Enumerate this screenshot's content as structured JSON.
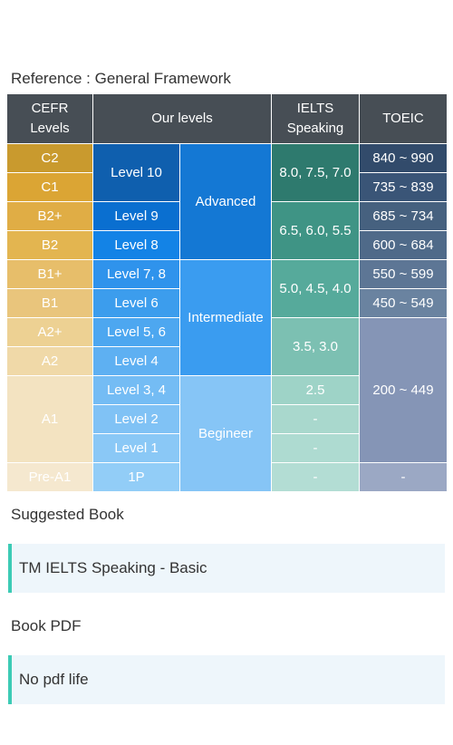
{
  "title": "Reference : General Framework",
  "table": {
    "header": [
      "CEFR Levels",
      "Our levels",
      "IELTS Speaking",
      "TOEIC"
    ],
    "rows": [
      [
        "C2",
        "Level 10",
        "Advanced",
        "8.0, 7.5, 7.0",
        "840 ~ 990"
      ],
      [
        "C1",
        "735 ~ 839"
      ],
      [
        "B2+",
        "Level 9",
        "6.5, 6.0, 5.5",
        "685 ~ 734"
      ],
      [
        "B2",
        "Level 8",
        "600 ~ 684"
      ],
      [
        "B1+",
        "Level 7, 8",
        "Intermediate",
        "5.0, 4.5, 4.0",
        "550 ~ 599"
      ],
      [
        "B1",
        "Level 6",
        "450 ~ 549"
      ],
      [
        "A2+",
        "Level 5, 6",
        "3.5, 3.0",
        "200 ~ 449"
      ],
      [
        "A2",
        "Level 4"
      ],
      [
        "A1",
        "Level 3, 4",
        "Begineer",
        "2.5"
      ],
      [
        "Level 2",
        "-"
      ],
      [
        "Level 1",
        "-"
      ],
      [
        "Pre-A1",
        "1P",
        "-",
        "-"
      ]
    ]
  },
  "sections": [
    {
      "heading": "Suggested Book",
      "text": "TM IELTS Speaking - Basic"
    },
    {
      "heading": "Book PDF",
      "text": "No pdf life"
    }
  ]
}
